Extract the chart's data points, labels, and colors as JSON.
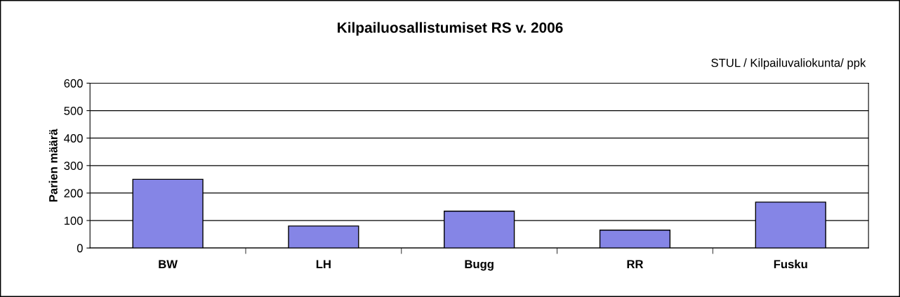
{
  "chart_data": {
    "type": "bar",
    "title": "Kilpailuosallistumiset RS v. 2006",
    "annotations": [
      "STUL / Kilpailuvaliokunta/ ppk"
    ],
    "ylabel": "Parien määrä",
    "categories": [
      "BW",
      "LH",
      "Bugg",
      "RR",
      "Fusku"
    ],
    "values": [
      250,
      80,
      134,
      65,
      167
    ],
    "color": "#8585e6",
    "ylim": [
      0,
      600
    ],
    "yticks": [
      0,
      100,
      200,
      300,
      400,
      500,
      600
    ],
    "grid": "y"
  }
}
